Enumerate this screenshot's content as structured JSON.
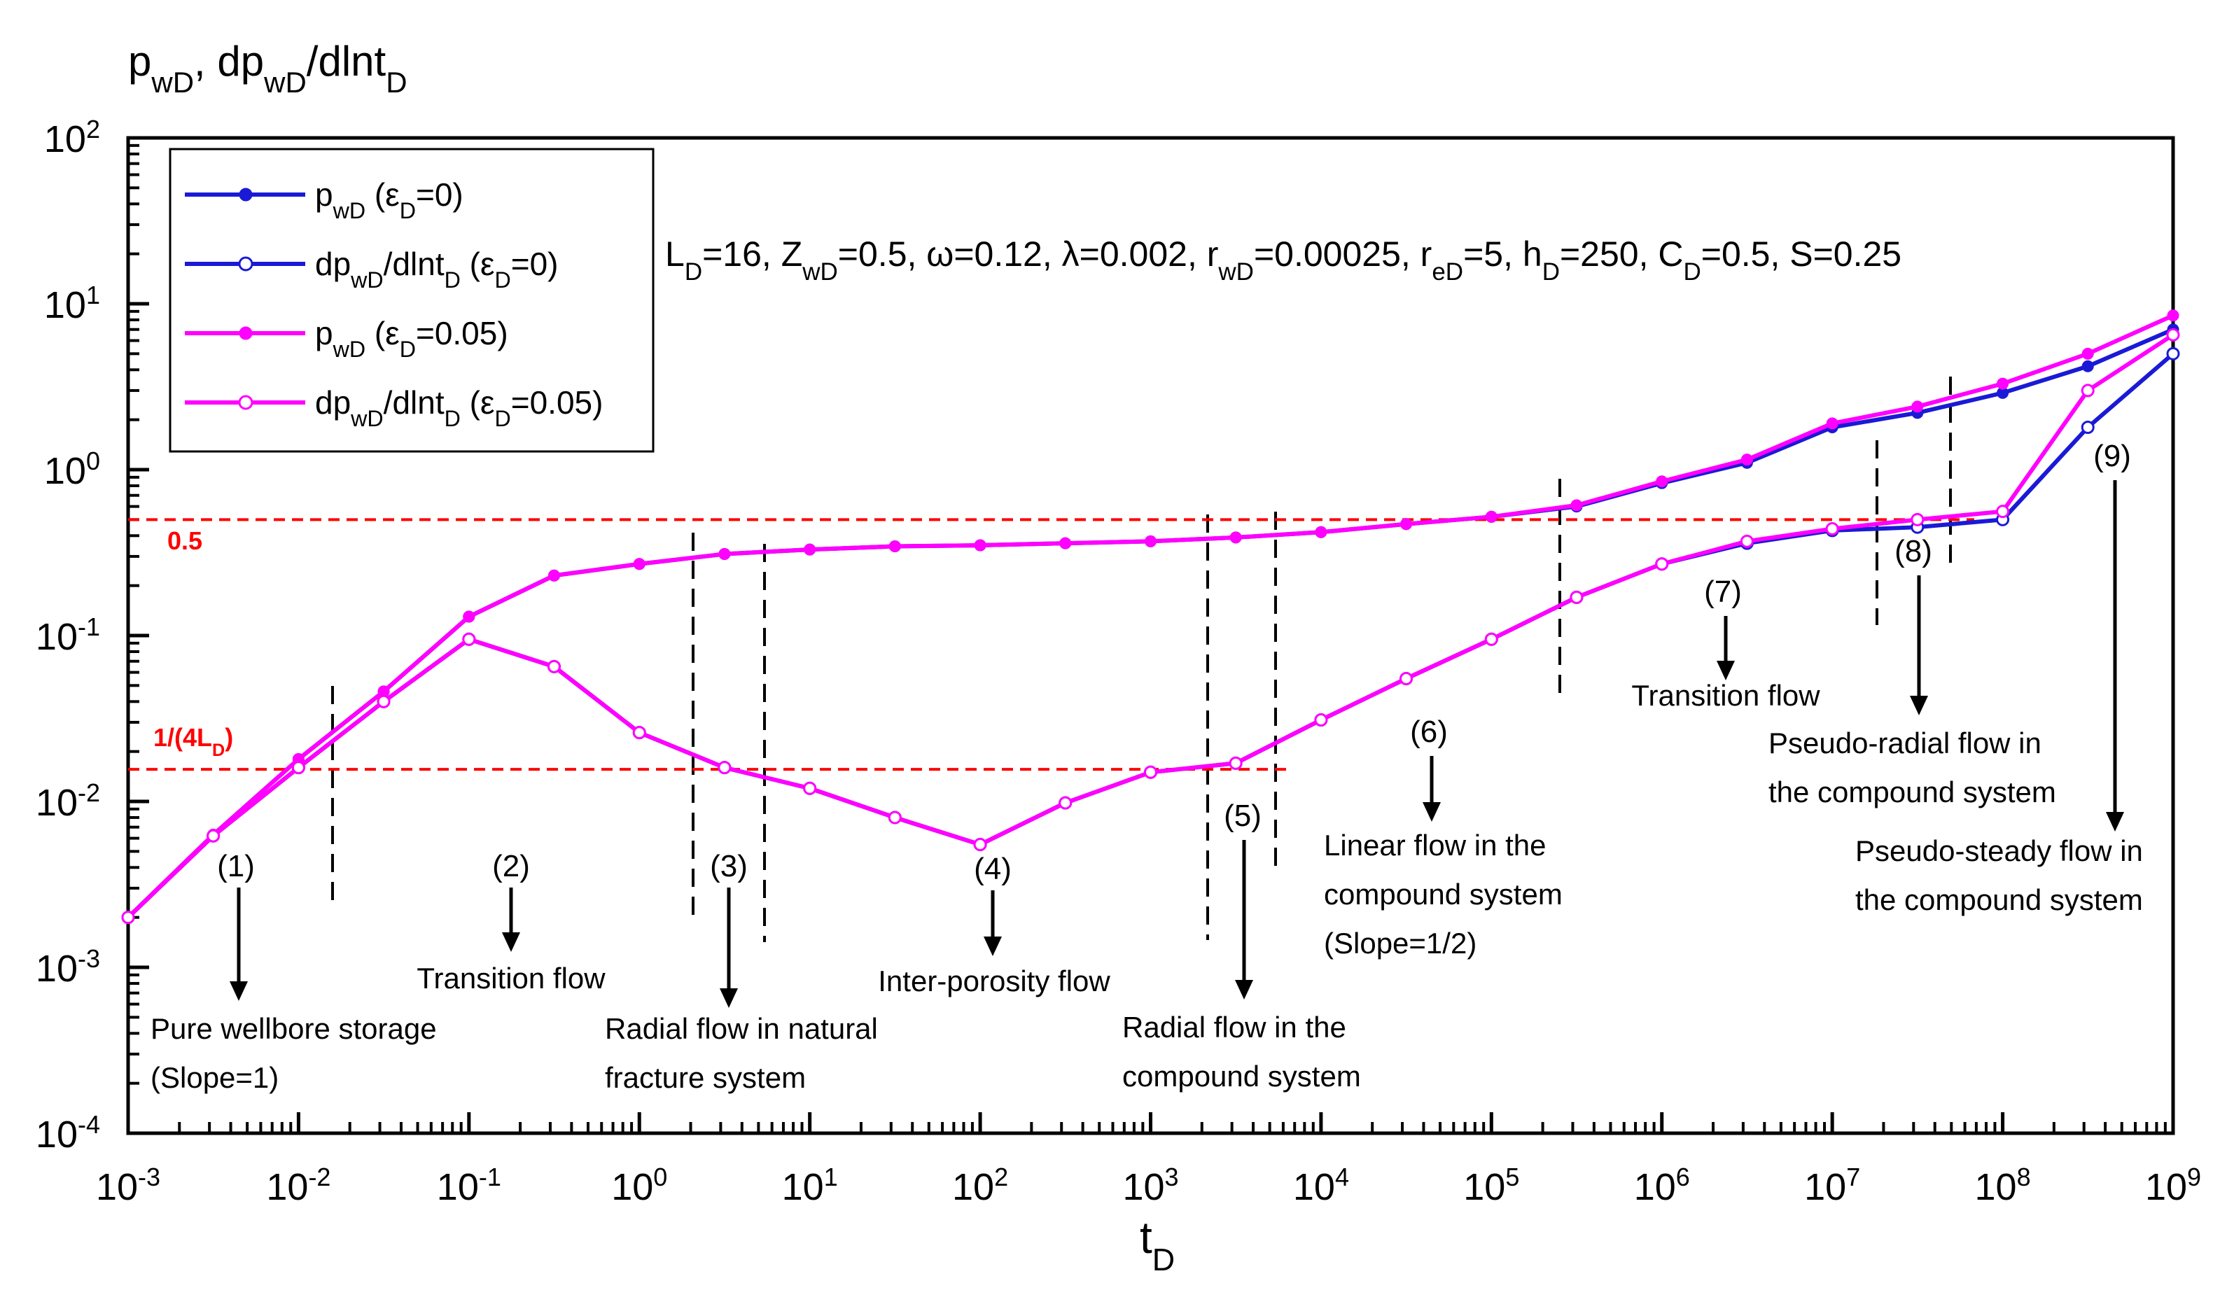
{
  "chart_data": {
    "type": "line",
    "y_label": [
      "p",
      "wD",
      ", dp",
      "wD",
      "/dlnt",
      "D"
    ],
    "x_label": [
      "t",
      "D"
    ],
    "parameters": [
      "L",
      "D",
      "=16, Z",
      "wD",
      "=0.5, ω=0.12, λ=0.002, r",
      "wD",
      "=0.00025, r",
      "eD",
      "=5, h",
      "D",
      "=250, C",
      "D",
      "=0.5, S=0.25"
    ],
    "x_log": true,
    "y_log": true,
    "xlim": [
      0.001,
      1000000000
    ],
    "ylim": [
      0.0001,
      100
    ],
    "xticks": [
      {
        "value": 0.001,
        "label": "10",
        "power": "-3"
      },
      {
        "value": 0.01,
        "label": "10",
        "power": "-2"
      },
      {
        "value": 0.1,
        "label": "10",
        "power": "-1"
      },
      {
        "value": 1,
        "label": "10",
        "power": "0"
      },
      {
        "value": 10,
        "label": "10",
        "power": "1"
      },
      {
        "value": 100,
        "label": "10",
        "power": "2"
      },
      {
        "value": 1000,
        "label": "10",
        "power": "3"
      },
      {
        "value": 10000,
        "label": "10",
        "power": "4"
      },
      {
        "value": 100000,
        "label": "10",
        "power": "5"
      },
      {
        "value": 1000000,
        "label": "10",
        "power": "6"
      },
      {
        "value": 10000000,
        "label": "10",
        "power": "7"
      },
      {
        "value": 100000000,
        "label": "10",
        "power": "8"
      },
      {
        "value": 1000000000,
        "label": "10",
        "power": "9"
      }
    ],
    "yticks": [
      {
        "value": 0.0001,
        "label": "10",
        "power": "-4"
      },
      {
        "value": 0.001,
        "label": "10",
        "power": "-3"
      },
      {
        "value": 0.01,
        "label": "10",
        "power": "-2"
      },
      {
        "value": 0.1,
        "label": "10",
        "power": "-1"
      },
      {
        "value": 1,
        "label": "10",
        "power": "0"
      },
      {
        "value": 10,
        "label": "10",
        "power": "1"
      },
      {
        "value": 100,
        "label": "10",
        "power": "2"
      }
    ],
    "x": [
      0.001,
      0.00316,
      0.01,
      0.0316,
      0.1,
      0.316,
      1,
      3.16,
      10,
      31.6,
      100,
      316,
      1000,
      3160,
      10000,
      31600,
      100000,
      316000,
      1000000,
      3160000,
      10000000,
      31600000,
      100000000,
      316000000,
      1000000000
    ],
    "series": [
      {
        "name": [
          "p",
          "wD",
          " (ε",
          "D",
          "=0)"
        ],
        "color": "#1a1ad6",
        "marker": "filled",
        "values": [
          0.002,
          0.0063,
          0.018,
          0.046,
          0.13,
          0.23,
          0.27,
          0.31,
          0.33,
          0.345,
          0.35,
          0.36,
          0.37,
          0.39,
          0.42,
          0.47,
          0.52,
          0.6,
          0.83,
          1.1,
          1.8,
          2.2,
          2.9,
          4.2,
          7
        ]
      },
      {
        "name": [
          "dp",
          "wD",
          "/dlnt",
          "D",
          " (ε",
          "D",
          "=0)"
        ],
        "color": "#1a1ad6",
        "marker": "open",
        "values": [
          0.002,
          0.0062,
          0.016,
          0.04,
          0.095,
          0.065,
          0.026,
          0.016,
          0.012,
          0.008,
          0.0055,
          0.0098,
          0.015,
          0.017,
          0.031,
          0.055,
          0.095,
          0.17,
          0.27,
          0.36,
          0.43,
          0.45,
          0.5,
          1.8,
          5
        ]
      },
      {
        "name": [
          "p",
          "wD",
          " (ε",
          "D",
          "=0.05)"
        ],
        "color": "#ff00ff",
        "marker": "filled",
        "values": [
          0.002,
          0.0063,
          0.018,
          0.046,
          0.13,
          0.23,
          0.27,
          0.31,
          0.33,
          0.345,
          0.35,
          0.36,
          0.37,
          0.39,
          0.42,
          0.47,
          0.52,
          0.61,
          0.85,
          1.15,
          1.9,
          2.4,
          3.3,
          5,
          8.5
        ]
      },
      {
        "name": [
          "dp",
          "wD",
          "/dlnt",
          "D",
          " (ε",
          "D",
          "=0.05)"
        ],
        "color": "#ff00ff",
        "marker": "open",
        "values": [
          0.002,
          0.0062,
          0.016,
          0.04,
          0.095,
          0.065,
          0.026,
          0.016,
          0.012,
          0.008,
          0.0055,
          0.0098,
          0.015,
          0.017,
          0.031,
          0.055,
          0.095,
          0.17,
          0.27,
          0.37,
          0.44,
          0.5,
          0.56,
          3,
          6.5
        ]
      }
    ],
    "reference_lines": [
      {
        "value": 0.5,
        "label": [
          "0.5"
        ],
        "color": "#ff0000"
      },
      {
        "value": 0.015625,
        "label": [
          "1/(4L",
          "D",
          ")"
        ],
        "color": "#ff0000"
      }
    ],
    "annotations": [
      {
        "label": "(1)",
        "text": [
          "Pure wellbore storage",
          "(Slope=1)"
        ]
      },
      {
        "label": "(2)",
        "text": [
          "Transition flow"
        ]
      },
      {
        "label": "(3)",
        "text": [
          "Radial flow in natural",
          "fracture system"
        ]
      },
      {
        "label": "(4)",
        "text": [
          "Inter-porosity flow"
        ]
      },
      {
        "label": "(5)",
        "text": [
          "Radial flow in the",
          "compound system"
        ]
      },
      {
        "label": "(6)",
        "text": [
          "Linear flow in the",
          "compound system",
          "(Slope=1/2)"
        ]
      },
      {
        "label": "(7)",
        "text": [
          "Transition flow"
        ]
      },
      {
        "label": "(8)",
        "text": [
          "Pseudo-radial flow in",
          "the compound system"
        ]
      },
      {
        "label": "(9)",
        "text": [
          "Pseudo-steady flow in",
          "the compound system"
        ]
      }
    ]
  }
}
